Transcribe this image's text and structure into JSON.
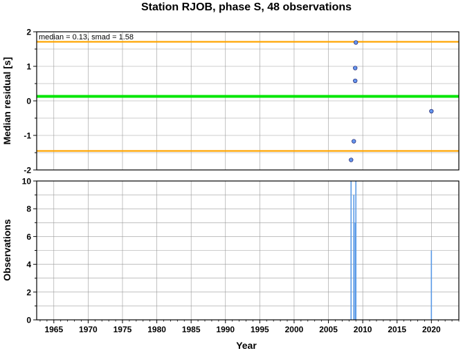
{
  "chart_data": [
    {
      "type": "scatter",
      "title": "Station RJOB, phase S, 48 observations",
      "ylabel": "Median residual [s]",
      "xlim": [
        1962.5,
        2024
      ],
      "ylim": [
        -2,
        2
      ],
      "y_ticks": [
        -2,
        -1,
        0,
        1,
        2
      ],
      "grid": true,
      "annotation": "median = 0.13, smad = 1.58",
      "reference_lines": [
        {
          "role": "median",
          "value": 0.13,
          "color": "#00e600"
        },
        {
          "role": "upper",
          "value": 1.71,
          "color": "#ffa500"
        },
        {
          "role": "lower",
          "value": -1.45,
          "color": "#ffa500"
        }
      ],
      "points": [
        {
          "x": 2009.0,
          "y": 1.69
        },
        {
          "x": 2008.9,
          "y": 0.95
        },
        {
          "x": 2008.9,
          "y": 0.58
        },
        {
          "x": 2020.0,
          "y": -0.3
        },
        {
          "x": 2008.7,
          "y": -1.17
        },
        {
          "x": 2008.3,
          "y": -1.71
        }
      ],
      "point_color": "#6495ed"
    },
    {
      "type": "bar",
      "ylabel": "Observations",
      "xlabel": "Year",
      "xlim": [
        1962.5,
        2024
      ],
      "ylim": [
        0,
        10
      ],
      "x_ticks": [
        1965,
        1970,
        1975,
        1980,
        1985,
        1990,
        1995,
        2000,
        2005,
        2010,
        2015,
        2020
      ],
      "y_ticks": [
        0,
        2,
        4,
        6,
        8,
        10
      ],
      "grid": true,
      "bars": [
        {
          "x": 2008.3,
          "value": 10
        },
        {
          "x": 2008.7,
          "value": 9
        },
        {
          "x": 2008.9,
          "value": 7
        },
        {
          "x": 2009.0,
          "value": 10
        },
        {
          "x": 2020.0,
          "value": 5
        }
      ],
      "bar_color": "#5a9ae6"
    }
  ]
}
